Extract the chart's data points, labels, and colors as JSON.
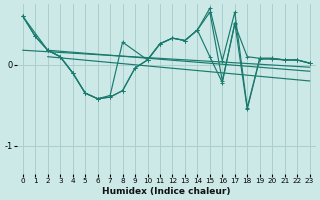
{
  "xlabel": "Humidex (Indice chaleur)",
  "bg_color": "#cce9e7",
  "grid_color": "#aacfcc",
  "line_color": "#1a7a6e",
  "xlim": [
    -0.5,
    23.5
  ],
  "ylim": [
    -1.35,
    0.75
  ],
  "xticks": [
    0,
    1,
    2,
    3,
    4,
    5,
    6,
    7,
    8,
    9,
    10,
    11,
    12,
    13,
    14,
    15,
    16,
    17,
    18,
    19,
    20,
    21,
    22,
    23
  ],
  "yticks": [
    0,
    -1
  ],
  "curve1_x": [
    0,
    1,
    2,
    3,
    4,
    5,
    6,
    7,
    8,
    9,
    10,
    11,
    12,
    13,
    14,
    15,
    16,
    17,
    18,
    19,
    20,
    21,
    22,
    23
  ],
  "curve1_y": [
    0.6,
    0.35,
    0.18,
    0.1,
    -0.1,
    -0.35,
    -0.42,
    -0.4,
    -0.32,
    -0.04,
    0.06,
    0.26,
    0.33,
    0.3,
    0.43,
    0.65,
    -0.2,
    0.5,
    0.1,
    0.08,
    0.08,
    0.06,
    0.06,
    0.02
  ],
  "curve2_x": [
    0,
    1,
    2,
    3,
    4,
    5,
    6,
    7,
    8,
    9,
    10,
    11,
    12,
    13,
    14,
    15,
    16,
    17,
    18,
    19,
    20,
    21,
    22,
    23
  ],
  "curve2_y": [
    0.6,
    0.35,
    0.18,
    0.1,
    -0.1,
    -0.35,
    -0.42,
    -0.4,
    -0.32,
    -0.04,
    0.06,
    0.26,
    0.33,
    0.3,
    0.43,
    0.7,
    0.05,
    0.65,
    -0.53,
    0.08,
    0.08,
    0.06,
    0.06,
    0.02
  ],
  "curve3_x": [
    0,
    2,
    3,
    4,
    5,
    6,
    7,
    8,
    10,
    11,
    12,
    13,
    14,
    15,
    16,
    17,
    18,
    19,
    20,
    21,
    22,
    23
  ],
  "curve3_y": [
    0.6,
    0.18,
    0.1,
    -0.1,
    -0.35,
    -0.42,
    -0.38,
    0.28,
    0.06,
    0.26,
    0.33,
    0.3,
    0.43,
    0.1,
    -0.22,
    0.52,
    -0.55,
    0.07,
    0.07,
    0.06,
    0.06,
    0.02
  ],
  "trend1_x": [
    0,
    23
  ],
  "trend1_y": [
    0.18,
    -0.03
  ],
  "trend2_x": [
    2,
    23
  ],
  "trend2_y": [
    0.18,
    -0.08
  ],
  "trend3_x": [
    2,
    23
  ],
  "trend3_y": [
    0.1,
    -0.2
  ]
}
